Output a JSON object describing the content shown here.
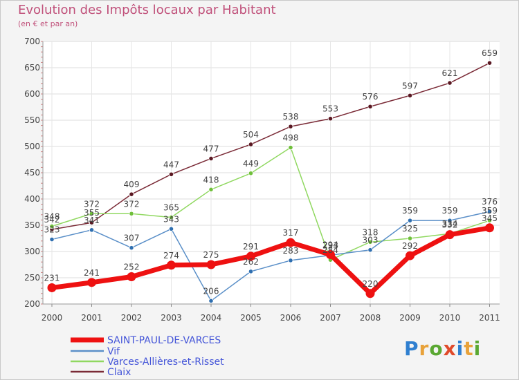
{
  "title": "Evolution des Impôts locaux par Habitant",
  "subtitle": "(en € et par an)",
  "logo": {
    "text": "Proxiti",
    "letter_colors": [
      "#2f7fd0",
      "#e8a23a",
      "#5aa832",
      "#e04a2a",
      "#2f7fd0",
      "#e8a23a",
      "#5aa832"
    ]
  },
  "chart_data": {
    "type": "line",
    "x": [
      "2000",
      "2001",
      "2002",
      "2003",
      "2004",
      "2005",
      "2006",
      "2007",
      "2008",
      "2009",
      "2010",
      "2011"
    ],
    "ylim": [
      200,
      700
    ],
    "yticks": [
      "200",
      "250",
      "300",
      "350",
      "400",
      "450",
      "500",
      "550",
      "600",
      "650",
      "700"
    ],
    "grid": true,
    "legend_position": "bottom-left",
    "series": [
      {
        "name": "SAINT-PAUL-DE-VARCES",
        "color": "#ee1111",
        "values": [
          231,
          241,
          252,
          274,
          275,
          291,
          317,
          294,
          220,
          292,
          332,
          345
        ]
      },
      {
        "name": "Vif",
        "color": "#5a8fc8",
        "values": [
          323,
          341,
          307,
          343,
          206,
          262,
          283,
          293,
          303,
          359,
          359,
          376
        ]
      },
      {
        "name": "Varces-Allières-et-Risset",
        "color": "#90d860",
        "values": [
          348,
          372,
          372,
          365,
          418,
          449,
          498,
          284,
          318,
          325,
          334,
          359
        ]
      },
      {
        "name": "Claix",
        "color": "#7a2a36",
        "values": [
          342,
          355,
          409,
          447,
          477,
          504,
          538,
          553,
          576,
          597,
          621,
          659
        ]
      }
    ]
  }
}
